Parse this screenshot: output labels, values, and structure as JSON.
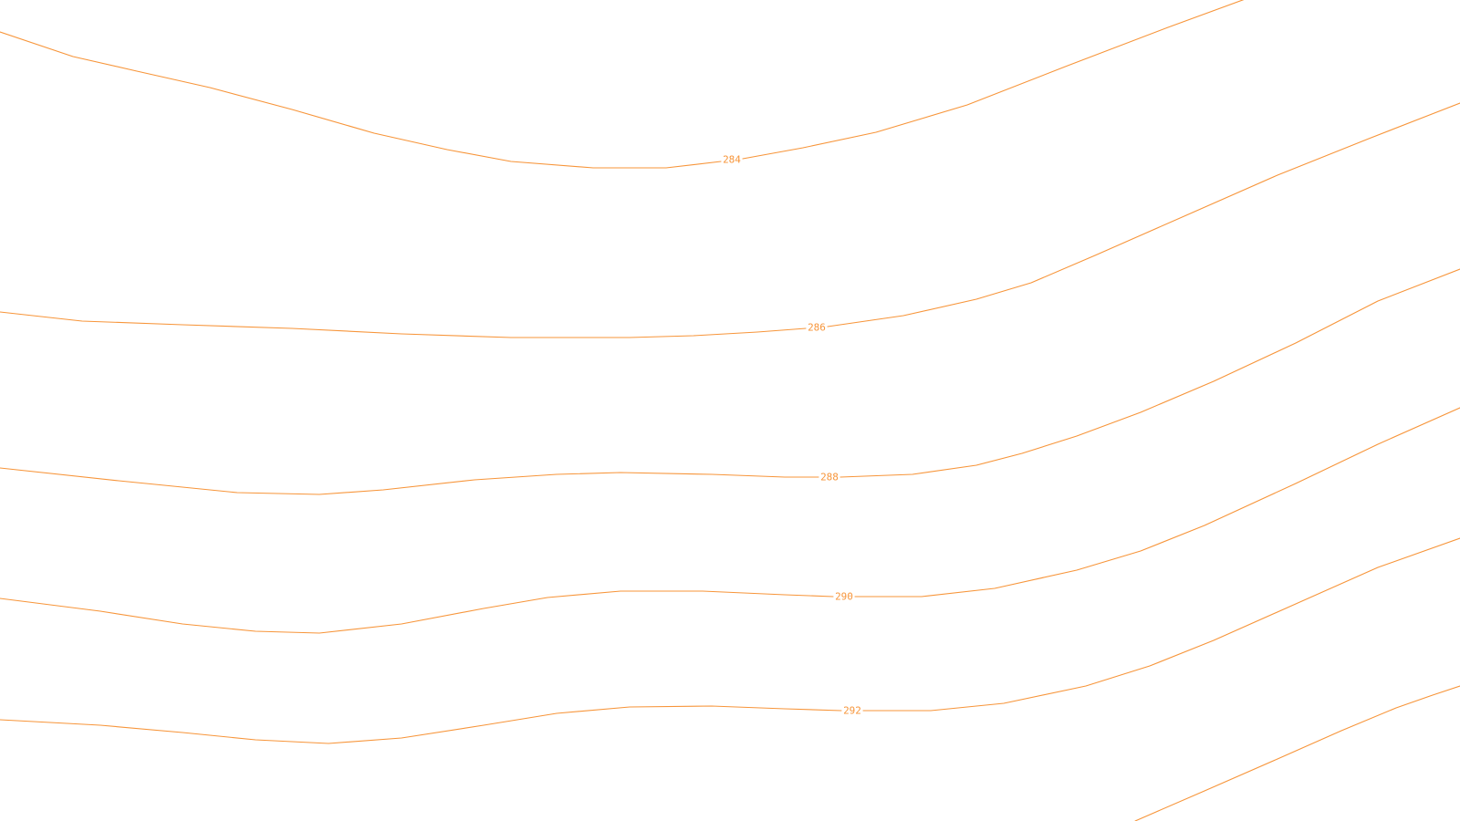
{
  "map": {
    "contour_color": "#f7953a",
    "background_color": "#ffffff",
    "contours": [
      {
        "id": "c284",
        "label": "284"
      },
      {
        "id": "c286",
        "label": "286"
      },
      {
        "id": "c288",
        "label": "288"
      },
      {
        "id": "c290",
        "label": "290"
      },
      {
        "id": "c292",
        "label": "292"
      },
      {
        "id": "c294",
        "label": ""
      }
    ]
  }
}
